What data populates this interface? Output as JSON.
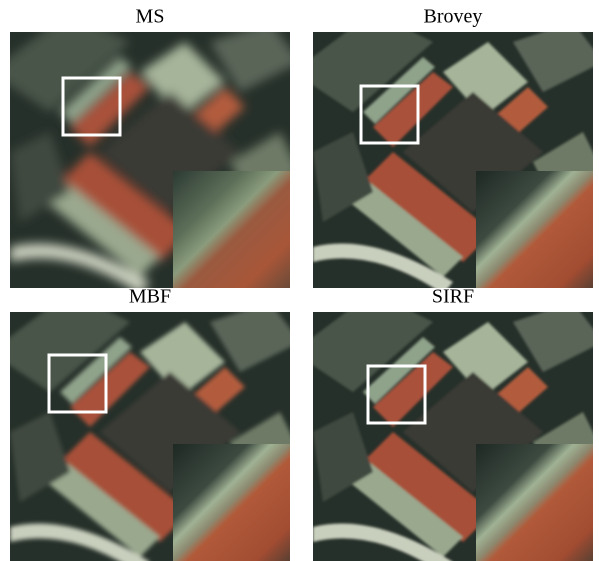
{
  "panels": [
    {
      "label": "MS"
    },
    {
      "label": "Brovey"
    },
    {
      "label": "MBF"
    },
    {
      "label": "SIRF"
    }
  ]
}
